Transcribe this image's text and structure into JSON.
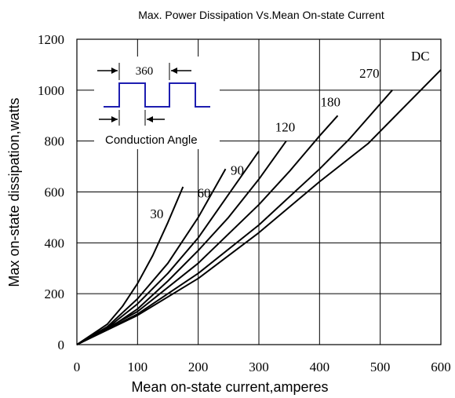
{
  "chart_data": {
    "type": "line",
    "title": "Max. Power Dissipation Vs.Mean On-state Current",
    "xlabel": "Mean on-state current,amperes",
    "ylabel": "Max on-state dissipation,watts",
    "xlim": [
      0,
      600
    ],
    "ylim": [
      0,
      1200
    ],
    "xticks": [
      0,
      100,
      200,
      300,
      400,
      500,
      600
    ],
    "yticks": [
      0,
      200,
      400,
      600,
      800,
      1000,
      1200
    ],
    "grid": true,
    "series": [
      {
        "name": "30",
        "x": [
          0,
          50,
          75,
          100,
          125,
          150,
          175
        ],
        "y": [
          0,
          80,
          150,
          240,
          350,
          480,
          620
        ]
      },
      {
        "name": "60",
        "x": [
          0,
          50,
          100,
          150,
          200,
          245
        ],
        "y": [
          0,
          70,
          180,
          320,
          500,
          690
        ]
      },
      {
        "name": "90",
        "x": [
          0,
          50,
          100,
          150,
          200,
          250,
          300
        ],
        "y": [
          0,
          65,
          160,
          280,
          420,
          590,
          760
        ]
      },
      {
        "name": "120",
        "x": [
          0,
          50,
          100,
          150,
          200,
          250,
          300,
          345
        ],
        "y": [
          0,
          60,
          140,
          250,
          370,
          500,
          650,
          800
        ]
      },
      {
        "name": "180",
        "x": [
          0,
          100,
          200,
          300,
          350,
          400,
          430
        ],
        "y": [
          0,
          130,
          320,
          550,
          680,
          820,
          900
        ]
      },
      {
        "name": "270",
        "x": [
          0,
          100,
          200,
          300,
          400,
          450,
          520
        ],
        "y": [
          0,
          120,
          280,
          470,
          690,
          810,
          1000
        ]
      },
      {
        "name": "DC",
        "x": [
          0,
          100,
          200,
          300,
          400,
          480,
          600
        ],
        "y": [
          0,
          115,
          260,
          440,
          640,
          790,
          1080
        ]
      }
    ],
    "inset": {
      "period_label": "360",
      "caption": "Conduction Angle"
    }
  }
}
